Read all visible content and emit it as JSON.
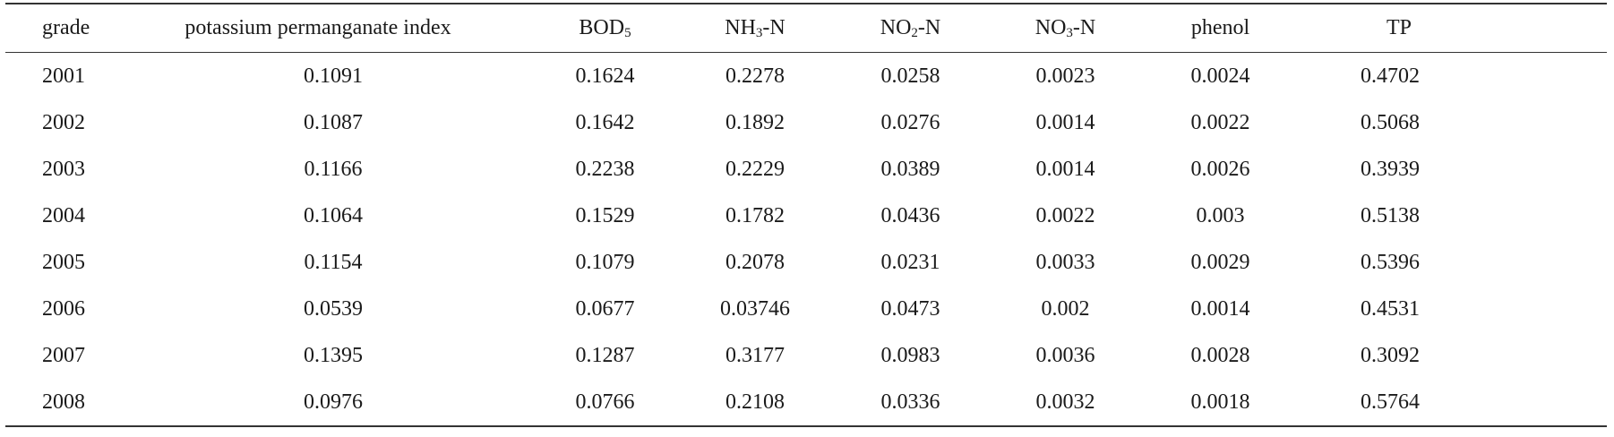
{
  "table": {
    "headers": [
      {
        "key": "grade",
        "text": "grade",
        "sub": "",
        "suffix": ""
      },
      {
        "key": "kmno4",
        "text": "potassium permanganate index",
        "sub": "",
        "suffix": ""
      },
      {
        "key": "bod",
        "text": "BOD",
        "sub": "5",
        "suffix": ""
      },
      {
        "key": "nh3",
        "text": "NH",
        "sub": "3",
        "suffix": "-N"
      },
      {
        "key": "no2",
        "text": "NO",
        "sub": "2",
        "suffix": "-N"
      },
      {
        "key": "no3",
        "text": "NO",
        "sub": "3",
        "suffix": "-N"
      },
      {
        "key": "phenol",
        "text": "phenol",
        "sub": "",
        "suffix": ""
      },
      {
        "key": "tp",
        "text": "TP",
        "sub": "",
        "suffix": ""
      }
    ],
    "rows": [
      [
        "2001",
        "0.1091",
        "0.1624",
        "0.2278",
        "0.0258",
        "0.0023",
        "0.0024",
        "0.4702"
      ],
      [
        "2002",
        "0.1087",
        "0.1642",
        "0.1892",
        "0.0276",
        "0.0014",
        "0.0022",
        "0.5068"
      ],
      [
        "2003",
        "0.1166",
        "0.2238",
        "0.2229",
        "0.0389",
        "0.0014",
        "0.0026",
        "0.3939"
      ],
      [
        "2004",
        "0.1064",
        "0.1529",
        "0.1782",
        "0.0436",
        "0.0022",
        "0.003",
        "0.5138"
      ],
      [
        "2005",
        "0.1154",
        "0.1079",
        "0.2078",
        "0.0231",
        "0.0033",
        "0.0029",
        "0.5396"
      ],
      [
        "2006",
        "0.0539",
        "0.0677",
        "0.03746",
        "0.0473",
        "0.002",
        "0.0014",
        "0.4531"
      ],
      [
        "2007",
        "0.1395",
        "0.1287",
        "0.3177",
        "0.0983",
        "0.0036",
        "0.0028",
        "0.3092"
      ],
      [
        "2008",
        "0.0976",
        "0.0766",
        "0.2108",
        "0.0336",
        "0.0032",
        "0.0018",
        "0.5764"
      ]
    ]
  }
}
